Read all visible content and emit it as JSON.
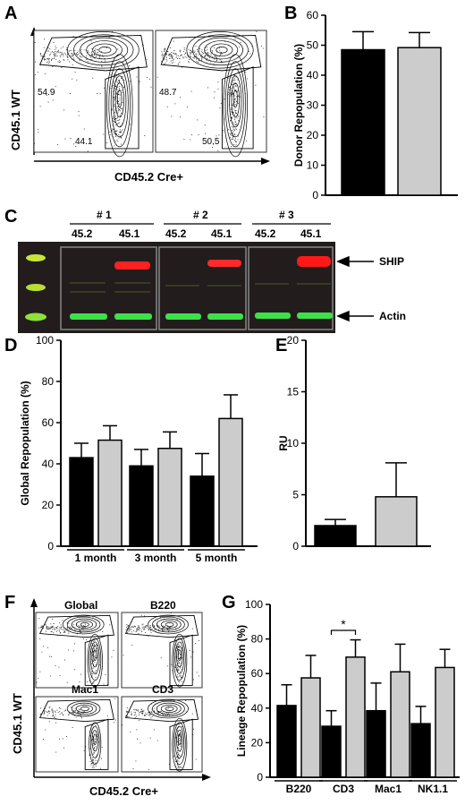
{
  "panels": {
    "A": {
      "letter": "A",
      "ylabel": "CD45.1 WT",
      "xlabel": "CD45.2 Cre+",
      "plots": [
        {
          "upper": "54.9",
          "lower": "44.1"
        },
        {
          "upper": "48.7",
          "lower": "50.5"
        }
      ]
    },
    "B": {
      "letter": "B"
    },
    "C": {
      "letter": "C",
      "groups": [
        "# 1",
        "# 2",
        "# 3"
      ],
      "lanes": [
        "45.2",
        "45.1"
      ],
      "labels": {
        "ship": "SHIP",
        "actin": "Actin"
      }
    },
    "D": {
      "letter": "D"
    },
    "E": {
      "letter": "E"
    },
    "F": {
      "letter": "F",
      "ylabel": "CD45.1 WT",
      "xlabel": "CD45.2 Cre+",
      "plots": [
        "Global",
        "B220",
        "Mac1",
        "CD3"
      ]
    },
    "G": {
      "letter": "G"
    }
  },
  "chart_data": [
    {
      "id": "B",
      "type": "bar",
      "categories": [
        "",
        ""
      ],
      "values": [
        48.5,
        49.2
      ],
      "errors": [
        6,
        5
      ],
      "colors": [
        "#000000",
        "#cccccc"
      ],
      "ylabel": "Donor Repopulation (%)",
      "xlabel": "",
      "ylim": [
        0,
        60
      ],
      "yticks": [
        "0",
        "10",
        "20",
        "30",
        "40",
        "50",
        "60"
      ]
    },
    {
      "id": "D",
      "type": "bar",
      "categories": [
        "1 month",
        "3 month",
        "5 month"
      ],
      "series": [
        {
          "values": [
            43,
            39,
            34
          ],
          "errors": [
            7,
            8,
            11
          ],
          "color": "#000000"
        },
        {
          "values": [
            51.5,
            47.5,
            62
          ],
          "errors": [
            7,
            8,
            11.5
          ],
          "color": "#cccccc"
        }
      ],
      "ylabel": "Global Repopulation (%)",
      "ylim": [
        0,
        100
      ],
      "yticks": [
        "0",
        "20",
        "40",
        "60",
        "80",
        "100"
      ]
    },
    {
      "id": "E",
      "type": "bar",
      "categories": [
        "",
        ""
      ],
      "values": [
        2.0,
        4.8
      ],
      "errors": [
        0.6,
        3.3
      ],
      "colors": [
        "#000000",
        "#cccccc"
      ],
      "ylabel": "RU",
      "ylim": [
        0,
        20
      ],
      "yticks": [
        "0",
        "5",
        "10",
        "15",
        "20"
      ]
    },
    {
      "id": "G",
      "type": "bar",
      "categories": [
        "B220",
        "CD3",
        "Mac1",
        "NK1.1"
      ],
      "series": [
        {
          "values": [
            41.5,
            29.5,
            38.5,
            31
          ],
          "errors": [
            12,
            9,
            16,
            10
          ],
          "color": "#000000"
        },
        {
          "values": [
            57.5,
            69.5,
            61,
            63.5
          ],
          "errors": [
            13,
            10,
            16,
            10.5
          ],
          "color": "#cccccc"
        }
      ],
      "ylabel": "Lineage Repopulation (%)",
      "ylim": [
        0,
        100
      ],
      "yticks": [
        "0",
        "20",
        "40",
        "60",
        "80",
        "100"
      ],
      "annotation": "*"
    }
  ]
}
